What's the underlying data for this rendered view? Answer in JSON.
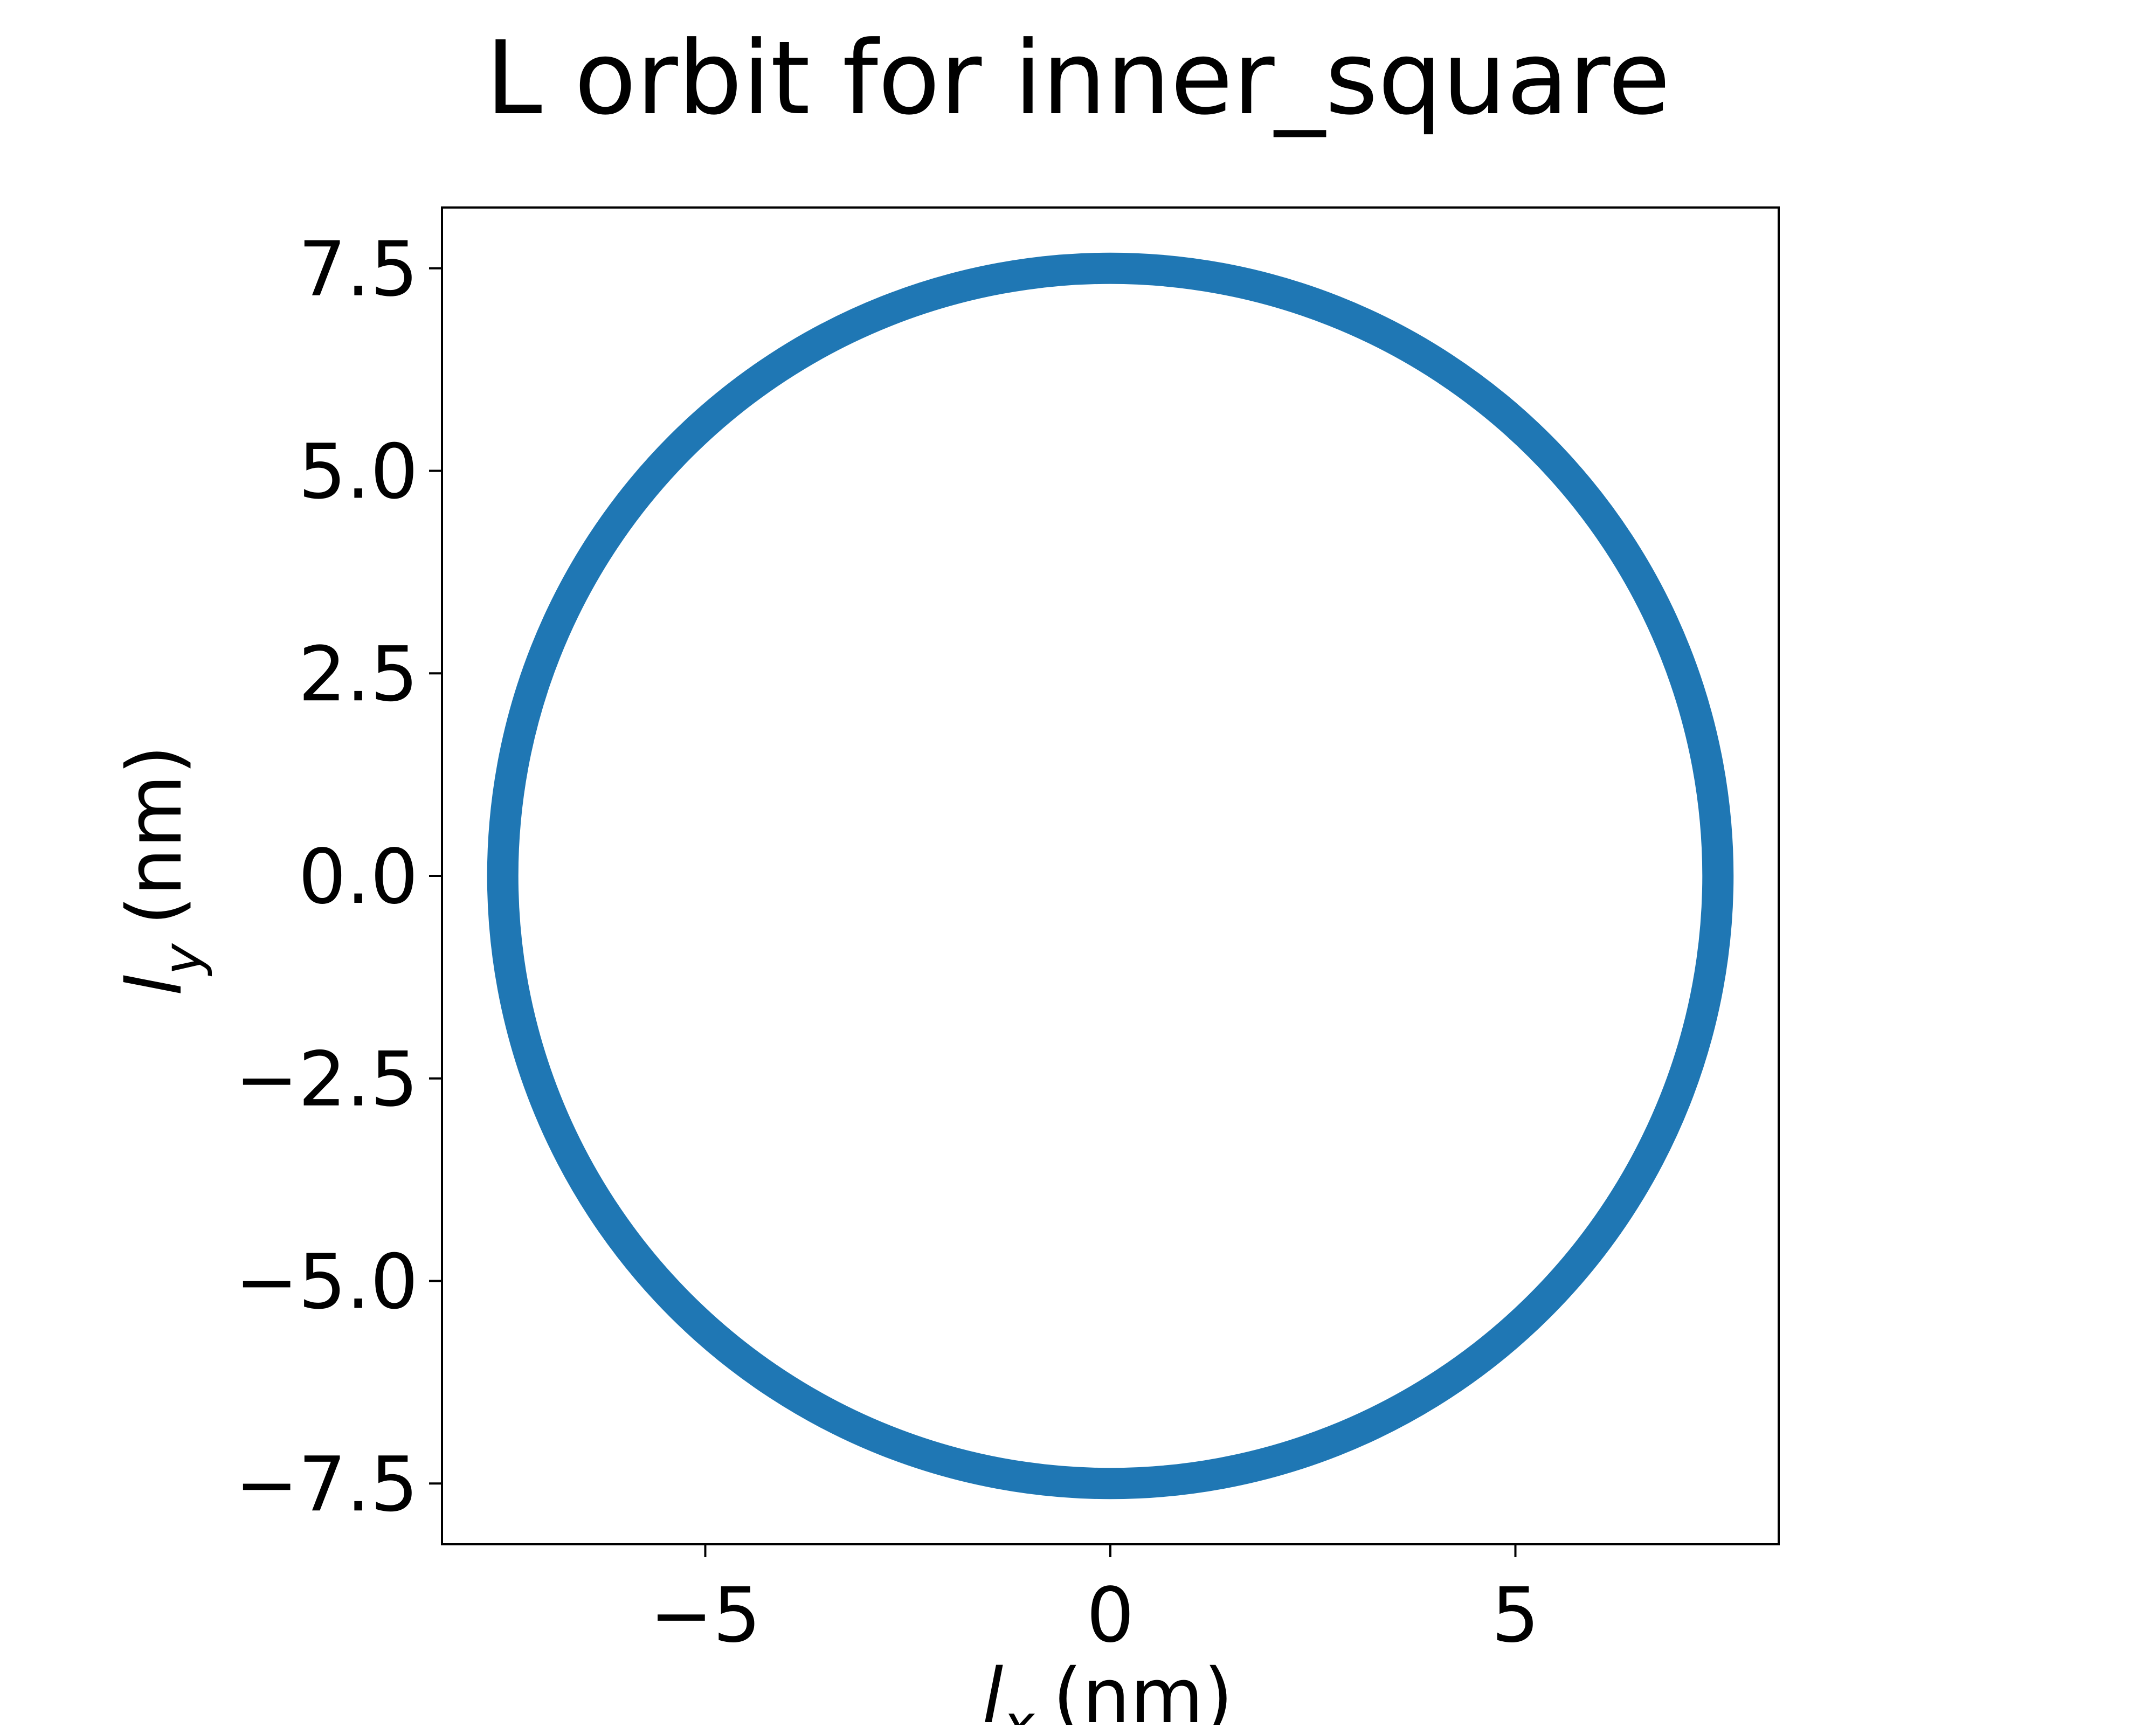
{
  "chart_data": {
    "type": "line",
    "title": "L orbit for inner_square",
    "xlabel": {
      "variable": "l",
      "subscript": "x",
      "unit": "(nm)"
    },
    "ylabel": {
      "variable": "l",
      "subscript": "y",
      "unit": "(nm)"
    },
    "xlim": [
      -8.25,
      8.25
    ],
    "ylim": [
      -8.25,
      8.25
    ],
    "xticks": [
      -5,
      0,
      5
    ],
    "xtick_labels": [
      "−5",
      "0",
      "5"
    ],
    "yticks": [
      -7.5,
      -5.0,
      -2.5,
      0.0,
      2.5,
      5.0,
      7.5
    ],
    "ytick_labels": [
      "−7.5",
      "−5.0",
      "−2.5",
      "0.0",
      "2.5",
      "5.0",
      "7.5"
    ],
    "grid": false,
    "series": [
      {
        "color": "#1f77b4",
        "shape": "circle",
        "center": [
          0,
          0
        ],
        "radius": 7.5
      }
    ]
  }
}
